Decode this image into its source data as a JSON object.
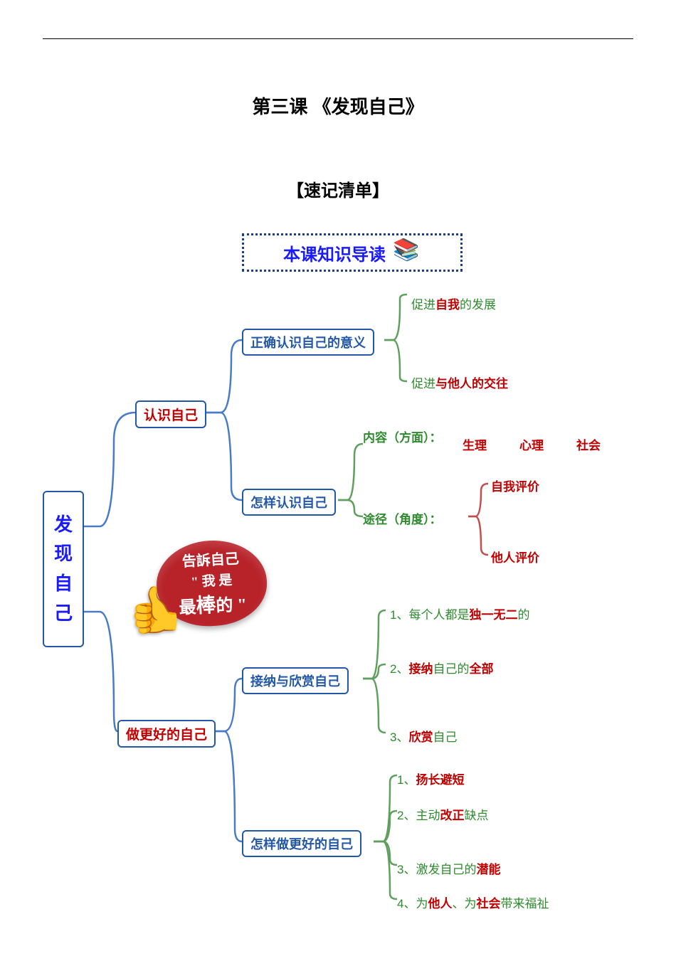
{
  "title": "第三课 《发现自己》",
  "subtitle": "【速记清单】",
  "guide": "本课知识导读",
  "root": "发现自己",
  "level1": {
    "a": "认识自己",
    "b": "做更好的自己"
  },
  "level2": {
    "a": "正确认识自己的意义",
    "b": "怎样认识自己",
    "c": "接纳与欣赏自己",
    "d": "怎样做更好的自己"
  },
  "leaves": {
    "a1_pre": "促进",
    "a1_hl": "自我",
    "a1_post": "的发展",
    "a2_pre": "促进",
    "a2_hl": "与他人的交往",
    "b1_label": "内容（方面）：",
    "b1_v1": "生理",
    "b1_v2": "心理",
    "b1_v3": "社会",
    "b2_label": "途径（角度）：",
    "b2_v1": "自我评价",
    "b2_v2": "他人评价",
    "c1_n": "1、",
    "c1_t1": "每个人都是",
    "c1_hl": "独一无二",
    "c1_t2": "的",
    "c2_n": "2、",
    "c2_hl": "接纳",
    "c2_t1": "自己的",
    "c2_hl2": "全部",
    "c3_n": "3、",
    "c3_hl": "欣赏",
    "c3_t": "自己",
    "d1_n": "1、",
    "d1_hl": "扬长避短",
    "d2_n": "2、",
    "d2_t": "主动",
    "d2_hl": "改正",
    "d2_t2": "缺点",
    "d3_n": "3、",
    "d3_t": "激发自己的",
    "d3_hl": "潜能",
    "d4_n": "4、",
    "d4_t1": "为",
    "d4_hl1": "他人",
    "d4_t2": "、为",
    "d4_hl2": "社会",
    "d4_t3": "带来福祉"
  },
  "badge": {
    "line1": "告訴自己",
    "line2": "\" 我 是",
    "line3a": "最",
    "line3b": "棒",
    "line3c": "的 \""
  },
  "colors": {
    "border": "#2358a8",
    "blue_text": "#1a1aff",
    "red_text": "#c00000",
    "green_text": "#2e8b2e",
    "bracket_blue": "#4a7bc8",
    "bracket_green": "#5fa05f",
    "bracket_red": "#c05050"
  }
}
